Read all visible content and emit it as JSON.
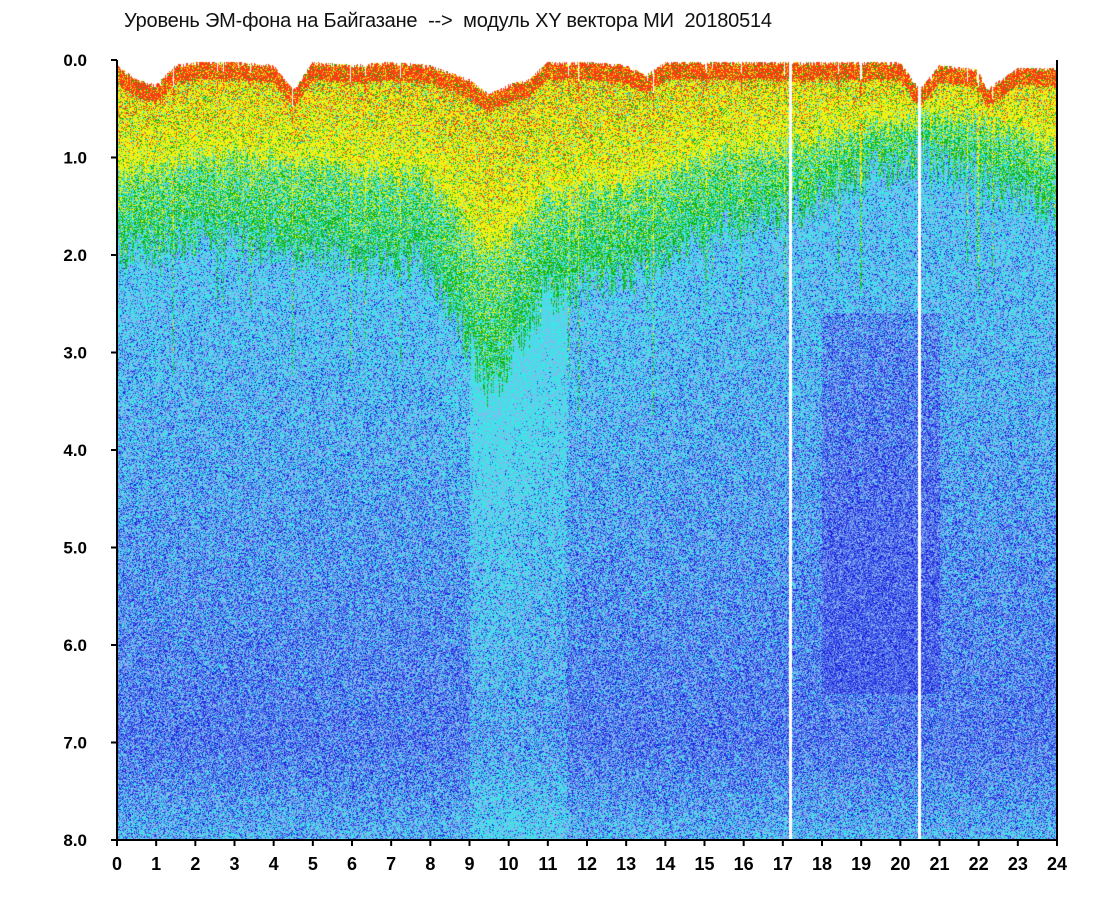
{
  "chart_data": {
    "type": "heatmap",
    "title": "Уровень ЭМ-фона на Байгазане  -->  модуль XY вектора МИ  20180514",
    "xlabel": "",
    "ylabel": "",
    "xlim": [
      0,
      24
    ],
    "ylim": [
      8.0,
      0.0
    ],
    "y_axis_inverted": true,
    "x_ticks": [
      "0",
      "1",
      "2",
      "3",
      "4",
      "5",
      "6",
      "7",
      "8",
      "9",
      "10",
      "11",
      "12",
      "13",
      "14",
      "15",
      "16",
      "17",
      "18",
      "19",
      "20",
      "21",
      "22",
      "23",
      "24"
    ],
    "y_ticks": [
      "0.0",
      "1.0",
      "2.0",
      "3.0",
      "4.0",
      "5.0",
      "6.0",
      "7.0",
      "8.0"
    ],
    "grid": false,
    "colorscale": [
      "#1e1ee0",
      "#4a6ae8",
      "#8ab4f0",
      "#3ce6e6",
      "#14b414",
      "#f0f014",
      "#ff3c14"
    ],
    "upper_boundary_by_hour": [
      {
        "x": 0,
        "y": 0.05
      },
      {
        "x": 0.5,
        "y": 0.2
      },
      {
        "x": 1,
        "y": 0.25
      },
      {
        "x": 1.5,
        "y": 0.05
      },
      {
        "x": 2,
        "y": 0.02
      },
      {
        "x": 3,
        "y": 0.02
      },
      {
        "x": 4,
        "y": 0.05
      },
      {
        "x": 4.5,
        "y": 0.3
      },
      {
        "x": 5,
        "y": 0.02
      },
      {
        "x": 6,
        "y": 0.05
      },
      {
        "x": 7,
        "y": 0.02
      },
      {
        "x": 8,
        "y": 0.05
      },
      {
        "x": 9,
        "y": 0.2
      },
      {
        "x": 9.5,
        "y": 0.35
      },
      {
        "x": 10,
        "y": 0.25
      },
      {
        "x": 10.5,
        "y": 0.2
      },
      {
        "x": 11,
        "y": 0.02
      },
      {
        "x": 12,
        "y": 0.02
      },
      {
        "x": 13,
        "y": 0.05
      },
      {
        "x": 13.5,
        "y": 0.15
      },
      {
        "x": 14,
        "y": 0.02
      },
      {
        "x": 15,
        "y": 0.02
      },
      {
        "x": 16,
        "y": 0.02
      },
      {
        "x": 17,
        "y": 0.02
      },
      {
        "x": 18,
        "y": 0.02
      },
      {
        "x": 19,
        "y": 0.02
      },
      {
        "x": 20,
        "y": 0.02
      },
      {
        "x": 20.5,
        "y": 0.3
      },
      {
        "x": 21,
        "y": 0.05
      },
      {
        "x": 22,
        "y": 0.1
      },
      {
        "x": 22.2,
        "y": 0.3
      },
      {
        "x": 23,
        "y": 0.08
      },
      {
        "x": 24,
        "y": 0.08
      }
    ],
    "yellow_band_depth_by_hour": [
      {
        "x": 0,
        "y": 1.2
      },
      {
        "x": 2,
        "y": 1.0
      },
      {
        "x": 4,
        "y": 1.0
      },
      {
        "x": 6,
        "y": 1.1
      },
      {
        "x": 8,
        "y": 1.2
      },
      {
        "x": 9.5,
        "y": 2.0
      },
      {
        "x": 11,
        "y": 1.4
      },
      {
        "x": 13,
        "y": 1.3
      },
      {
        "x": 15,
        "y": 1.0
      },
      {
        "x": 17,
        "y": 0.9
      },
      {
        "x": 19,
        "y": 0.7
      },
      {
        "x": 20.5,
        "y": 0.6
      },
      {
        "x": 22,
        "y": 0.6
      },
      {
        "x": 24,
        "y": 0.9
      }
    ],
    "green_band_depth_by_hour": [
      {
        "x": 0,
        "y": 2.0
      },
      {
        "x": 2,
        "y": 1.8
      },
      {
        "x": 4,
        "y": 1.9
      },
      {
        "x": 6,
        "y": 2.0
      },
      {
        "x": 8,
        "y": 2.1
      },
      {
        "x": 9.5,
        "y": 3.4
      },
      {
        "x": 11,
        "y": 2.4
      },
      {
        "x": 13,
        "y": 2.2
      },
      {
        "x": 15,
        "y": 1.8
      },
      {
        "x": 17,
        "y": 1.6
      },
      {
        "x": 19,
        "y": 1.2
      },
      {
        "x": 20.5,
        "y": 1.0
      },
      {
        "x": 22,
        "y": 1.2
      },
      {
        "x": 24,
        "y": 1.6
      }
    ],
    "gaps_x": [
      17.2,
      20.5
    ],
    "dark_blue_region": {
      "x": [
        18,
        21
      ],
      "y": [
        2.6,
        6.5
      ]
    }
  }
}
